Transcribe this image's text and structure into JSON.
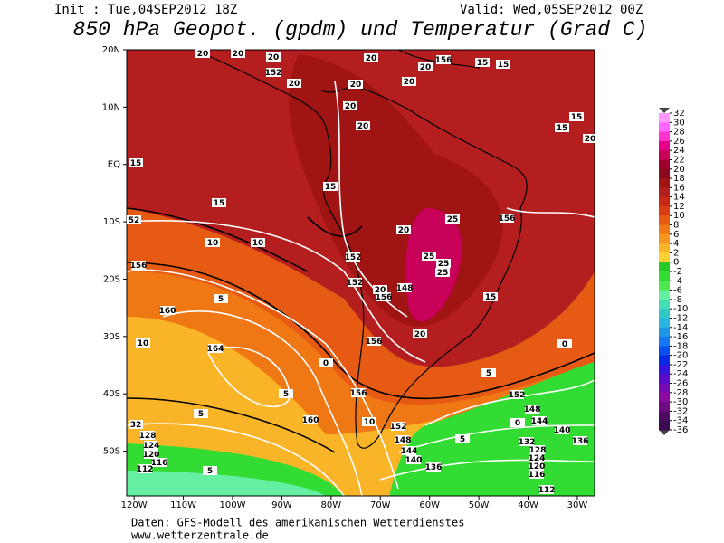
{
  "header": {
    "init": "Init : Tue,04SEP2012 18Z",
    "valid": "Valid: Wed,05SEP2012 00Z",
    "title": "850 hPa Geopot. (gpdm) und Temperatur (Grad C)"
  },
  "map": {
    "xlim": [
      -121.5,
      -26.5
    ],
    "ylim": [
      -57.8,
      20
    ],
    "xticks": [
      {
        "value": -120,
        "label": "120W"
      },
      {
        "value": -110,
        "label": "110W"
      },
      {
        "value": -100,
        "label": "100W"
      },
      {
        "value": -90,
        "label": "90W"
      },
      {
        "value": -80,
        "label": "80W"
      },
      {
        "value": -70,
        "label": "70W"
      },
      {
        "value": -60,
        "label": "60W"
      },
      {
        "value": -50,
        "label": "50W"
      },
      {
        "value": -40,
        "label": "40W"
      },
      {
        "value": -30,
        "label": "30W"
      }
    ],
    "yticks": [
      {
        "value": 20,
        "label": "20N"
      },
      {
        "value": 10,
        "label": "10N"
      },
      {
        "value": 0,
        "label": "EQ"
      },
      {
        "value": -10,
        "label": "10S"
      },
      {
        "value": -20,
        "label": "20S"
      },
      {
        "value": -30,
        "label": "30S"
      },
      {
        "value": -40,
        "label": "40S"
      },
      {
        "value": -50,
        "label": "50S"
      }
    ],
    "contour_labels": [
      20,
      20,
      152,
      20,
      20,
      20,
      20,
      20,
      156,
      15,
      15,
      15,
      15,
      20,
      15,
      20,
      20,
      20,
      15,
      156,
      25,
      52,
      10,
      10,
      156,
      152,
      25,
      25,
      148,
      156,
      152,
      20,
      20,
      156,
      15,
      15,
      160,
      5,
      10,
      164,
      0,
      5,
      156,
      160,
      5,
      152,
      10,
      152,
      148,
      144,
      140,
      136,
      32,
      128,
      124,
      120,
      116,
      112,
      5,
      132,
      128,
      124,
      120,
      116,
      112,
      136,
      140,
      144,
      148,
      5,
      0,
      0,
      5,
      25,
      20
    ]
  },
  "colorbar": {
    "ticks": [
      32,
      30,
      28,
      26,
      24,
      22,
      20,
      18,
      16,
      14,
      12,
      10,
      8,
      6,
      4,
      2,
      0,
      -2,
      -4,
      -6,
      -8,
      -10,
      -12,
      -14,
      -16,
      -18,
      -20,
      -22,
      -24,
      -26,
      -28,
      -30,
      -32,
      -34,
      -36
    ],
    "colors": [
      "#ff99ff",
      "#ff66ff",
      "#ff33cc",
      "#e6008a",
      "#c8005a",
      "#a00030",
      "#8c0a1e",
      "#a01414",
      "#b41e1e",
      "#c82814",
      "#dc3c14",
      "#e65a14",
      "#f07814",
      "#f5961e",
      "#fab428",
      "#ffd232",
      "#28c828",
      "#32dc32",
      "#50e650",
      "#64f0a0",
      "#46dcb4",
      "#32c8c8",
      "#28b4dc",
      "#1e96e6",
      "#1478f0",
      "#0a50f0",
      "#0a28e6",
      "#3214dc",
      "#5a0ac8",
      "#780ab4",
      "#8c0aa0",
      "#6e0a82",
      "#500a64",
      "#3c0a50"
    ]
  },
  "footer": {
    "source": "Daten: GFS-Modell des amerikanischen Wetterdienstes",
    "url": "www.wetterzentrale.de"
  }
}
